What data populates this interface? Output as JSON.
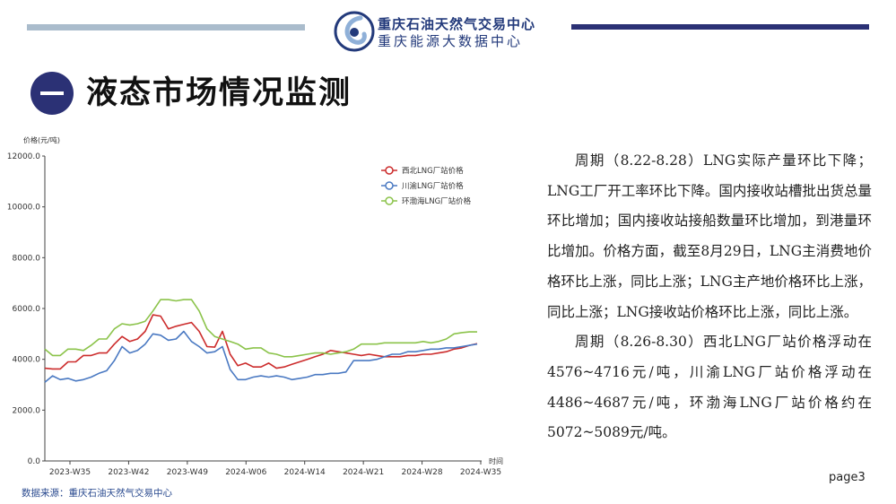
{
  "header": {
    "org_name": "重庆石油天然气交易中心",
    "org_subname": "重庆能源大数据中心",
    "colors": {
      "accent": "#2b3175",
      "light_bar": "#aabccc"
    }
  },
  "section": {
    "number_icon": "dash-glyph",
    "title": "液态市场情况监测"
  },
  "chart_data": {
    "type": "line",
    "ylabel": "价格(元/吨)",
    "xlabel": "时间",
    "ylim": [
      0,
      12000
    ],
    "yticks": [
      "0.0",
      "2000.0",
      "4000.0",
      "6000.0",
      "8000.0",
      "10000.0",
      "12000.0"
    ],
    "xticks": [
      "2023-W35",
      "2023-W42",
      "2023-W49",
      "2024-W06",
      "2024-W14",
      "2024-W21",
      "2024-W28",
      "2024-W35"
    ],
    "legend_position": "top-right",
    "grid": false,
    "series": [
      {
        "name": "西北LNG厂站价格",
        "color": "#cc2c2c",
        "values": [
          3650,
          3620,
          3620,
          3900,
          3900,
          4150,
          4150,
          4250,
          4250,
          4600,
          4900,
          4700,
          4800,
          5100,
          5750,
          5700,
          5200,
          5300,
          5380,
          5450,
          5100,
          4500,
          4480,
          5100,
          4200,
          3750,
          3850,
          3700,
          3700,
          3850,
          3650,
          3700,
          3800,
          3900,
          4000,
          4100,
          4200,
          4350,
          4300,
          4250,
          4200,
          4150,
          4200,
          4150,
          4100,
          4100,
          4100,
          4150,
          4150,
          4200,
          4200,
          4250,
          4300,
          4400,
          4450,
          4550,
          4620
        ]
      },
      {
        "name": "川渝LNG厂站价格",
        "color": "#4a79c2",
        "values": [
          3100,
          3350,
          3200,
          3250,
          3150,
          3200,
          3300,
          3450,
          3550,
          3950,
          4500,
          4250,
          4350,
          4600,
          5000,
          4950,
          4750,
          4800,
          5100,
          4700,
          4500,
          4250,
          4300,
          4500,
          3600,
          3200,
          3200,
          3300,
          3350,
          3300,
          3350,
          3300,
          3200,
          3250,
          3300,
          3400,
          3400,
          3450,
          3450,
          3500,
          3950,
          3950,
          3950,
          4000,
          4100,
          4200,
          4200,
          4300,
          4300,
          4350,
          4400,
          4400,
          4450,
          4450,
          4500,
          4550,
          4600
        ]
      },
      {
        "name": "环渤海LNG厂站价格",
        "color": "#8bc34a",
        "values": [
          4400,
          4150,
          4150,
          4400,
          4400,
          4350,
          4550,
          4800,
          4800,
          5200,
          5400,
          5350,
          5400,
          5500,
          5900,
          6350,
          6350,
          6300,
          6350,
          6350,
          5900,
          5200,
          4900,
          4800,
          4700,
          4600,
          4400,
          4450,
          4450,
          4250,
          4200,
          4100,
          4100,
          4150,
          4200,
          4250,
          4250,
          4200,
          4250,
          4300,
          4400,
          4600,
          4600,
          4600,
          4650,
          4650,
          4650,
          4650,
          4650,
          4700,
          4650,
          4700,
          4800,
          5000,
          5050,
          5080,
          5080
        ]
      }
    ]
  },
  "text": {
    "paragraph1": "周期（8.22-8.28）LNG实际产量环比下降；LNG工厂开工率环比下降。国内接收站槽批出货总量环比增加；国内接收站接船数量环比增加，到港量环比增加。价格方面，截至8月29日，LNG主消费地价格环比上涨，同比上涨；LNG主产地价格环比上涨，同比上涨；LNG接收站价格环比上涨，同比上涨。",
    "paragraph2": "周期（8.26-8.30）西北LNG厂站价格浮动在4576~4716元/吨，川渝LNG厂站价格浮动在4486~4687元/吨，环渤海LNG厂站价格约在5072~5089元/吨。"
  },
  "footer": {
    "source": "数据来源：重庆石油天然气交易中心",
    "page": "page3"
  }
}
